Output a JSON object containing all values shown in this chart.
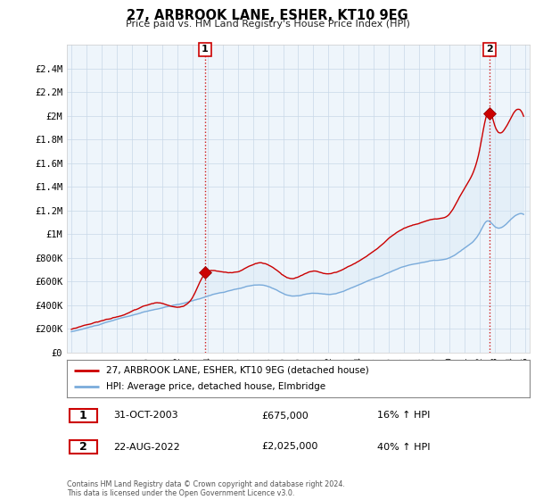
{
  "title": "27, ARBROOK LANE, ESHER, KT10 9EG",
  "subtitle": "Price paid vs. HM Land Registry's House Price Index (HPI)",
  "legend_line1": "27, ARBROOK LANE, ESHER, KT10 9EG (detached house)",
  "legend_line2": "HPI: Average price, detached house, Elmbridge",
  "annotation1_label": "1",
  "annotation1_date": "31-OCT-2003",
  "annotation1_price": "£675,000",
  "annotation1_hpi": "16% ↑ HPI",
  "annotation2_label": "2",
  "annotation2_date": "22-AUG-2022",
  "annotation2_price": "£2,025,000",
  "annotation2_hpi": "40% ↑ HPI",
  "footer": "Contains HM Land Registry data © Crown copyright and database right 2024.\nThis data is licensed under the Open Government Licence v3.0.",
  "price_color": "#cc0000",
  "hpi_color": "#7aabdb",
  "fill_color": "#d6e8f5",
  "vline_color": "#cc0000",
  "bg_color": "#eef5fb",
  "ylim": [
    0,
    2600000
  ],
  "yticks": [
    0,
    200000,
    400000,
    600000,
    800000,
    1000000,
    1200000,
    1400000,
    1600000,
    1800000,
    2000000,
    2200000,
    2400000
  ],
  "ytick_labels": [
    "£0",
    "£200K",
    "£400K",
    "£600K",
    "£800K",
    "£1M",
    "£1.2M",
    "£1.4M",
    "£1.6M",
    "£1.8M",
    "£2M",
    "£2.2M",
    "£2.4M"
  ],
  "purchase1_x": 2003.83,
  "purchase1_y": 675000,
  "purchase2_x": 2022.64,
  "purchase2_y": 2025000,
  "xmin": 1995.0,
  "xmax": 2025.0
}
